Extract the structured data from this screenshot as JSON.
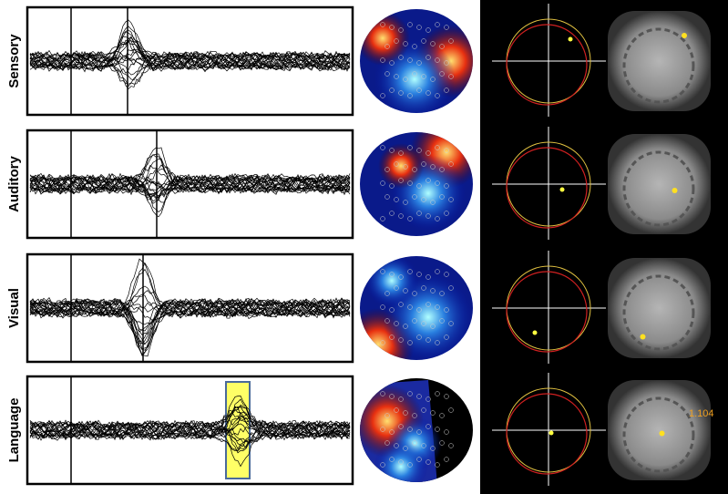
{
  "rows": [
    {
      "label": "Sensory"
    },
    {
      "label": "Auditory"
    },
    {
      "label": "Visual"
    },
    {
      "label": "Language",
      "annotation": "1.104"
    }
  ]
}
